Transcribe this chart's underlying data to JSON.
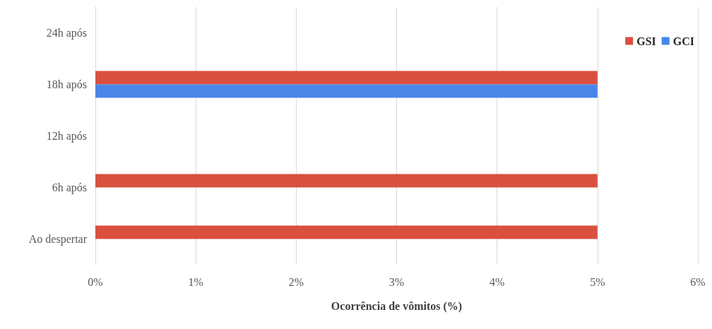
{
  "chart_data": {
    "type": "bar",
    "orientation": "horizontal",
    "xlabel": "Ocorrência de vômitos (%)",
    "categories": [
      "24h após",
      "18h após",
      "12h após",
      "6h após",
      "Ao despertar"
    ],
    "series": [
      {
        "name": "GSI",
        "color": "#d9503f",
        "values": [
          0,
          5,
          0,
          5,
          5
        ]
      },
      {
        "name": "GCI",
        "color": "#4a86e8",
        "values": [
          0,
          5,
          0,
          0,
          0
        ]
      }
    ],
    "xlim": [
      0,
      6
    ],
    "xticks": [
      {
        "value": 0,
        "label": "0%"
      },
      {
        "value": 1,
        "label": "1%"
      },
      {
        "value": 2,
        "label": "2%"
      },
      {
        "value": 3,
        "label": "3%"
      },
      {
        "value": 4,
        "label": "4%"
      },
      {
        "value": 5,
        "label": "5%"
      },
      {
        "value": 6,
        "label": "6%"
      }
    ],
    "grid": "x",
    "legend": "top right"
  }
}
